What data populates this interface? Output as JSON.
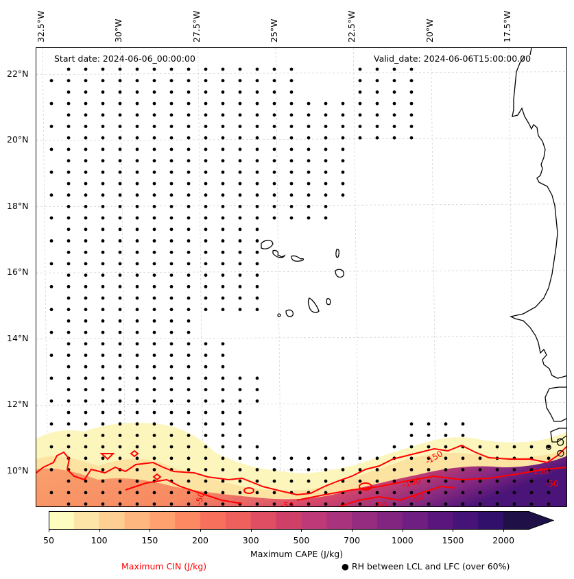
{
  "map": {
    "title_left": "Start date: 2024-06-06_00:00:00",
    "title_right": "Valid_date: 2024-06-06T15:00:00.00",
    "extent": {
      "lon_min": -32.7,
      "lon_max": -15.6,
      "lat_min": 8.9,
      "lat_max": 22.8
    },
    "lon_ticks": [
      {
        "value": -32.5,
        "label": "32.5°W"
      },
      {
        "value": -30.0,
        "label": "30°W"
      },
      {
        "value": -27.5,
        "label": "27.5°W"
      },
      {
        "value": -25.0,
        "label": "25°W"
      },
      {
        "value": -22.5,
        "label": "22.5°W"
      },
      {
        "value": -20.0,
        "label": "20°W"
      },
      {
        "value": -17.5,
        "label": "17.5°W"
      }
    ],
    "lat_ticks": [
      {
        "value": 22,
        "label": "22°N"
      },
      {
        "value": 20,
        "label": "20°N"
      },
      {
        "value": 18,
        "label": "18°N"
      },
      {
        "value": 16,
        "label": "16°N"
      },
      {
        "value": 14,
        "label": "14°N"
      },
      {
        "value": 12,
        "label": "12°N"
      },
      {
        "value": 10,
        "label": "10°N"
      }
    ],
    "cin_contour_labels": [
      "-50",
      "-50",
      "-50",
      "-100",
      "-150",
      "-150",
      "-50",
      "-50"
    ],
    "cin_color": "#ff0000",
    "coastline_color": "#000000",
    "gridline_color": "#cccccc"
  },
  "colorbar": {
    "label": "Maximum CAPE (J/kg)",
    "extend": "max",
    "levels": [
      50,
      75,
      100,
      125,
      150,
      175,
      200,
      250,
      300,
      400,
      500,
      600,
      700,
      850,
      1000,
      1250,
      1500,
      1750,
      2000
    ],
    "tick_labels": [
      "50",
      "100",
      "150",
      "200",
      "300",
      "500",
      "700",
      "1000",
      "1500",
      "2000"
    ],
    "colors": [
      "#fcfdbf",
      "#fde5a7",
      "#fecf92",
      "#feb77e",
      "#fea16e",
      "#fc8961",
      "#f7705c",
      "#ee605e",
      "#e04e63",
      "#cf4069",
      "#bd3977",
      "#aa337d",
      "#962c80",
      "#822581",
      "#6e1f81",
      "#5b167e",
      "#461378",
      "#30106a",
      "#1f1147"
    ]
  },
  "legend": {
    "cin_label": "Maximum CIN (J/kg)",
    "cin_label_color": "#ff0000",
    "rh_marker": "●",
    "rh_label": "RH between LCL and LFC (over 60%)"
  }
}
